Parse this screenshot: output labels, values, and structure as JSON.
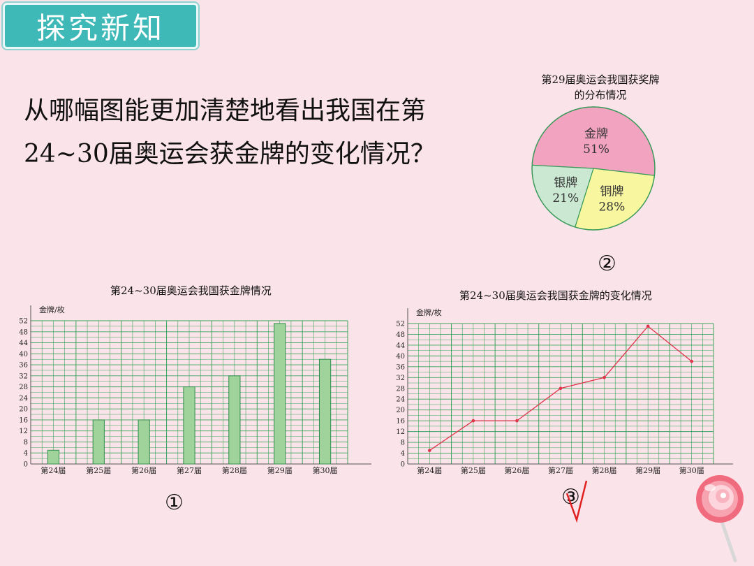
{
  "header": {
    "title": "探究新知"
  },
  "question": {
    "text": "从哪幅图能更加清楚地看出我国在第24~30届奥运会获金牌的变化情况？"
  },
  "colors": {
    "badge": "#3fb8b8",
    "bar_fill": "#9fd39b",
    "grid": "#3aa55b",
    "line": "#e0334a",
    "pie_gold": "#f2a3bf",
    "pie_silver": "#cbe8d2",
    "pie_bronze": "#f8f7a0"
  },
  "labels": {
    "chart1_num": "①",
    "chart2_num": "②",
    "chart3_num": "③"
  },
  "chart_data": [
    {
      "type": "bar",
      "title": "第24~30届奥运会我国获金牌情况",
      "ylabel": "金牌/枚",
      "categories": [
        "第24届",
        "第25届",
        "第26届",
        "第27届",
        "第28届",
        "第29届",
        "第30届"
      ],
      "values": [
        5,
        16,
        16,
        28,
        32,
        51,
        38
      ],
      "ylim": [
        0,
        52
      ],
      "yticks": [
        0,
        4,
        8,
        12,
        16,
        20,
        24,
        28,
        32,
        36,
        40,
        44,
        48,
        52
      ],
      "grid": true
    },
    {
      "type": "pie",
      "title": "第29届奥运会我国获奖牌的分布情况",
      "slices": [
        {
          "label": "金牌",
          "value": 51,
          "text": "51%"
        },
        {
          "label": "铜牌",
          "value": 28,
          "text": "28%"
        },
        {
          "label": "银牌",
          "value": 21,
          "text": "21%"
        }
      ]
    },
    {
      "type": "line",
      "title": "第24~30届奥运会我国获金牌的变化情况",
      "ylabel": "金牌/枚",
      "categories": [
        "第24届",
        "第25届",
        "第26届",
        "第27届",
        "第28届",
        "第29届",
        "第30届"
      ],
      "values": [
        5,
        16,
        16,
        28,
        32,
        51,
        38
      ],
      "ylim": [
        0,
        52
      ],
      "yticks": [
        0,
        4,
        8,
        12,
        16,
        20,
        24,
        28,
        32,
        36,
        40,
        44,
        48,
        52
      ],
      "grid": true
    }
  ]
}
